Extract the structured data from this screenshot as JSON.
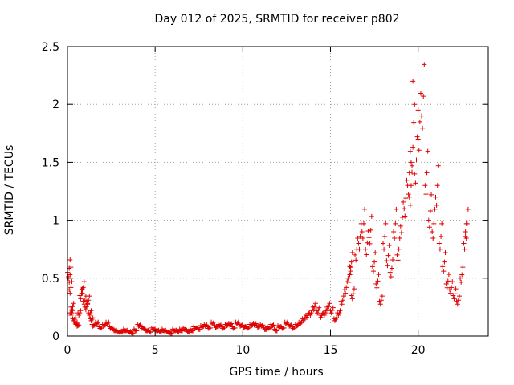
{
  "chart_data": {
    "type": "scatter",
    "title": "Day 012 of 2025, SRMTID for receiver p802",
    "xlabel": "GPS time / hours",
    "ylabel": "SRMTID / TECUs",
    "xlim": [
      0,
      24
    ],
    "ylim": [
      0,
      2.5
    ],
    "xticks": [
      "0",
      "5",
      "10",
      "15",
      "20"
    ],
    "xtick_values": [
      0,
      5,
      10,
      15,
      20
    ],
    "yticks": [
      "0",
      "0.5",
      "1",
      "1.5",
      "2",
      "2.5"
    ],
    "ytick_values": [
      0,
      0.5,
      1,
      1.5,
      2,
      2.5
    ],
    "grid": true,
    "marker": "+",
    "color": "#e00000",
    "series": [
      {
        "name": "SRMTID",
        "x": [
          0.0,
          0.05,
          0.1,
          0.15,
          0.2,
          0.3,
          0.4,
          0.5,
          0.6,
          0.7,
          0.8,
          0.9,
          1.0,
          1.1,
          1.2,
          1.3,
          1.4,
          1.6,
          1.8,
          2.0,
          2.2,
          2.4,
          2.6,
          2.8,
          3.0,
          3.2,
          3.4,
          3.6,
          3.8,
          4.0,
          4.2,
          4.4,
          4.6,
          4.8,
          5.0,
          5.2,
          5.4,
          5.6,
          5.8,
          6.0,
          6.2,
          6.4,
          6.6,
          6.8,
          7.0,
          7.2,
          7.4,
          7.6,
          7.8,
          8.0,
          8.2,
          8.4,
          8.6,
          8.8,
          9.0,
          9.2,
          9.4,
          9.6,
          9.8,
          10.0,
          10.2,
          10.4,
          10.6,
          10.8,
          11.0,
          11.2,
          11.4,
          11.6,
          11.8,
          12.0,
          12.2,
          12.4,
          12.6,
          12.8,
          13.0,
          13.2,
          13.4,
          13.6,
          13.8,
          14.0,
          14.2,
          14.4,
          14.6,
          14.8,
          15.0,
          15.2,
          15.4,
          15.6,
          15.8,
          16.0,
          16.1,
          16.2,
          16.4,
          16.6,
          16.8,
          17.0,
          17.2,
          17.4,
          17.6,
          17.8,
          18.0,
          18.2,
          18.4,
          18.6,
          18.8,
          19.0,
          19.2,
          19.4,
          19.5,
          19.6,
          19.8,
          20.0,
          20.2,
          20.4,
          20.6,
          20.8,
          21.0,
          21.2,
          21.4,
          21.6,
          21.8,
          22.0,
          22.2,
          22.4,
          22.6,
          22.7
        ],
        "y": [
          0.55,
          0.5,
          0.4,
          0.2,
          0.25,
          0.15,
          0.12,
          0.1,
          0.2,
          0.35,
          0.4,
          0.3,
          0.25,
          0.3,
          0.2,
          0.15,
          0.1,
          0.12,
          0.08,
          0.1,
          0.12,
          0.08,
          0.06,
          0.05,
          0.05,
          0.06,
          0.05,
          0.04,
          0.06,
          0.1,
          0.08,
          0.06,
          0.05,
          0.07,
          0.06,
          0.05,
          0.06,
          0.05,
          0.04,
          0.06,
          0.05,
          0.06,
          0.07,
          0.05,
          0.06,
          0.08,
          0.07,
          0.09,
          0.1,
          0.08,
          0.12,
          0.09,
          0.1,
          0.08,
          0.1,
          0.11,
          0.08,
          0.12,
          0.1,
          0.09,
          0.08,
          0.1,
          0.11,
          0.09,
          0.1,
          0.07,
          0.08,
          0.1,
          0.06,
          0.09,
          0.08,
          0.12,
          0.1,
          0.08,
          0.1,
          0.12,
          0.15,
          0.18,
          0.2,
          0.25,
          0.22,
          0.18,
          0.2,
          0.25,
          0.22,
          0.15,
          0.2,
          0.3,
          0.4,
          0.5,
          0.6,
          0.35,
          0.7,
          0.8,
          0.9,
          0.75,
          0.85,
          0.6,
          0.45,
          0.3,
          0.8,
          0.65,
          0.55,
          0.9,
          0.7,
          0.95,
          1.1,
          1.3,
          1.2,
          1.5,
          1.4,
          1.7,
          1.9,
          1.3,
          1.0,
          0.9,
          1.2,
          0.8,
          0.6,
          0.45,
          0.4,
          0.35,
          0.3,
          0.5,
          0.8,
          0.9
        ],
        "extra_points": {
          "x": [
            19.7,
            19.8,
            20.0
          ],
          "y": [
            2.2,
            2.0,
            1.95
          ]
        }
      }
    ]
  }
}
